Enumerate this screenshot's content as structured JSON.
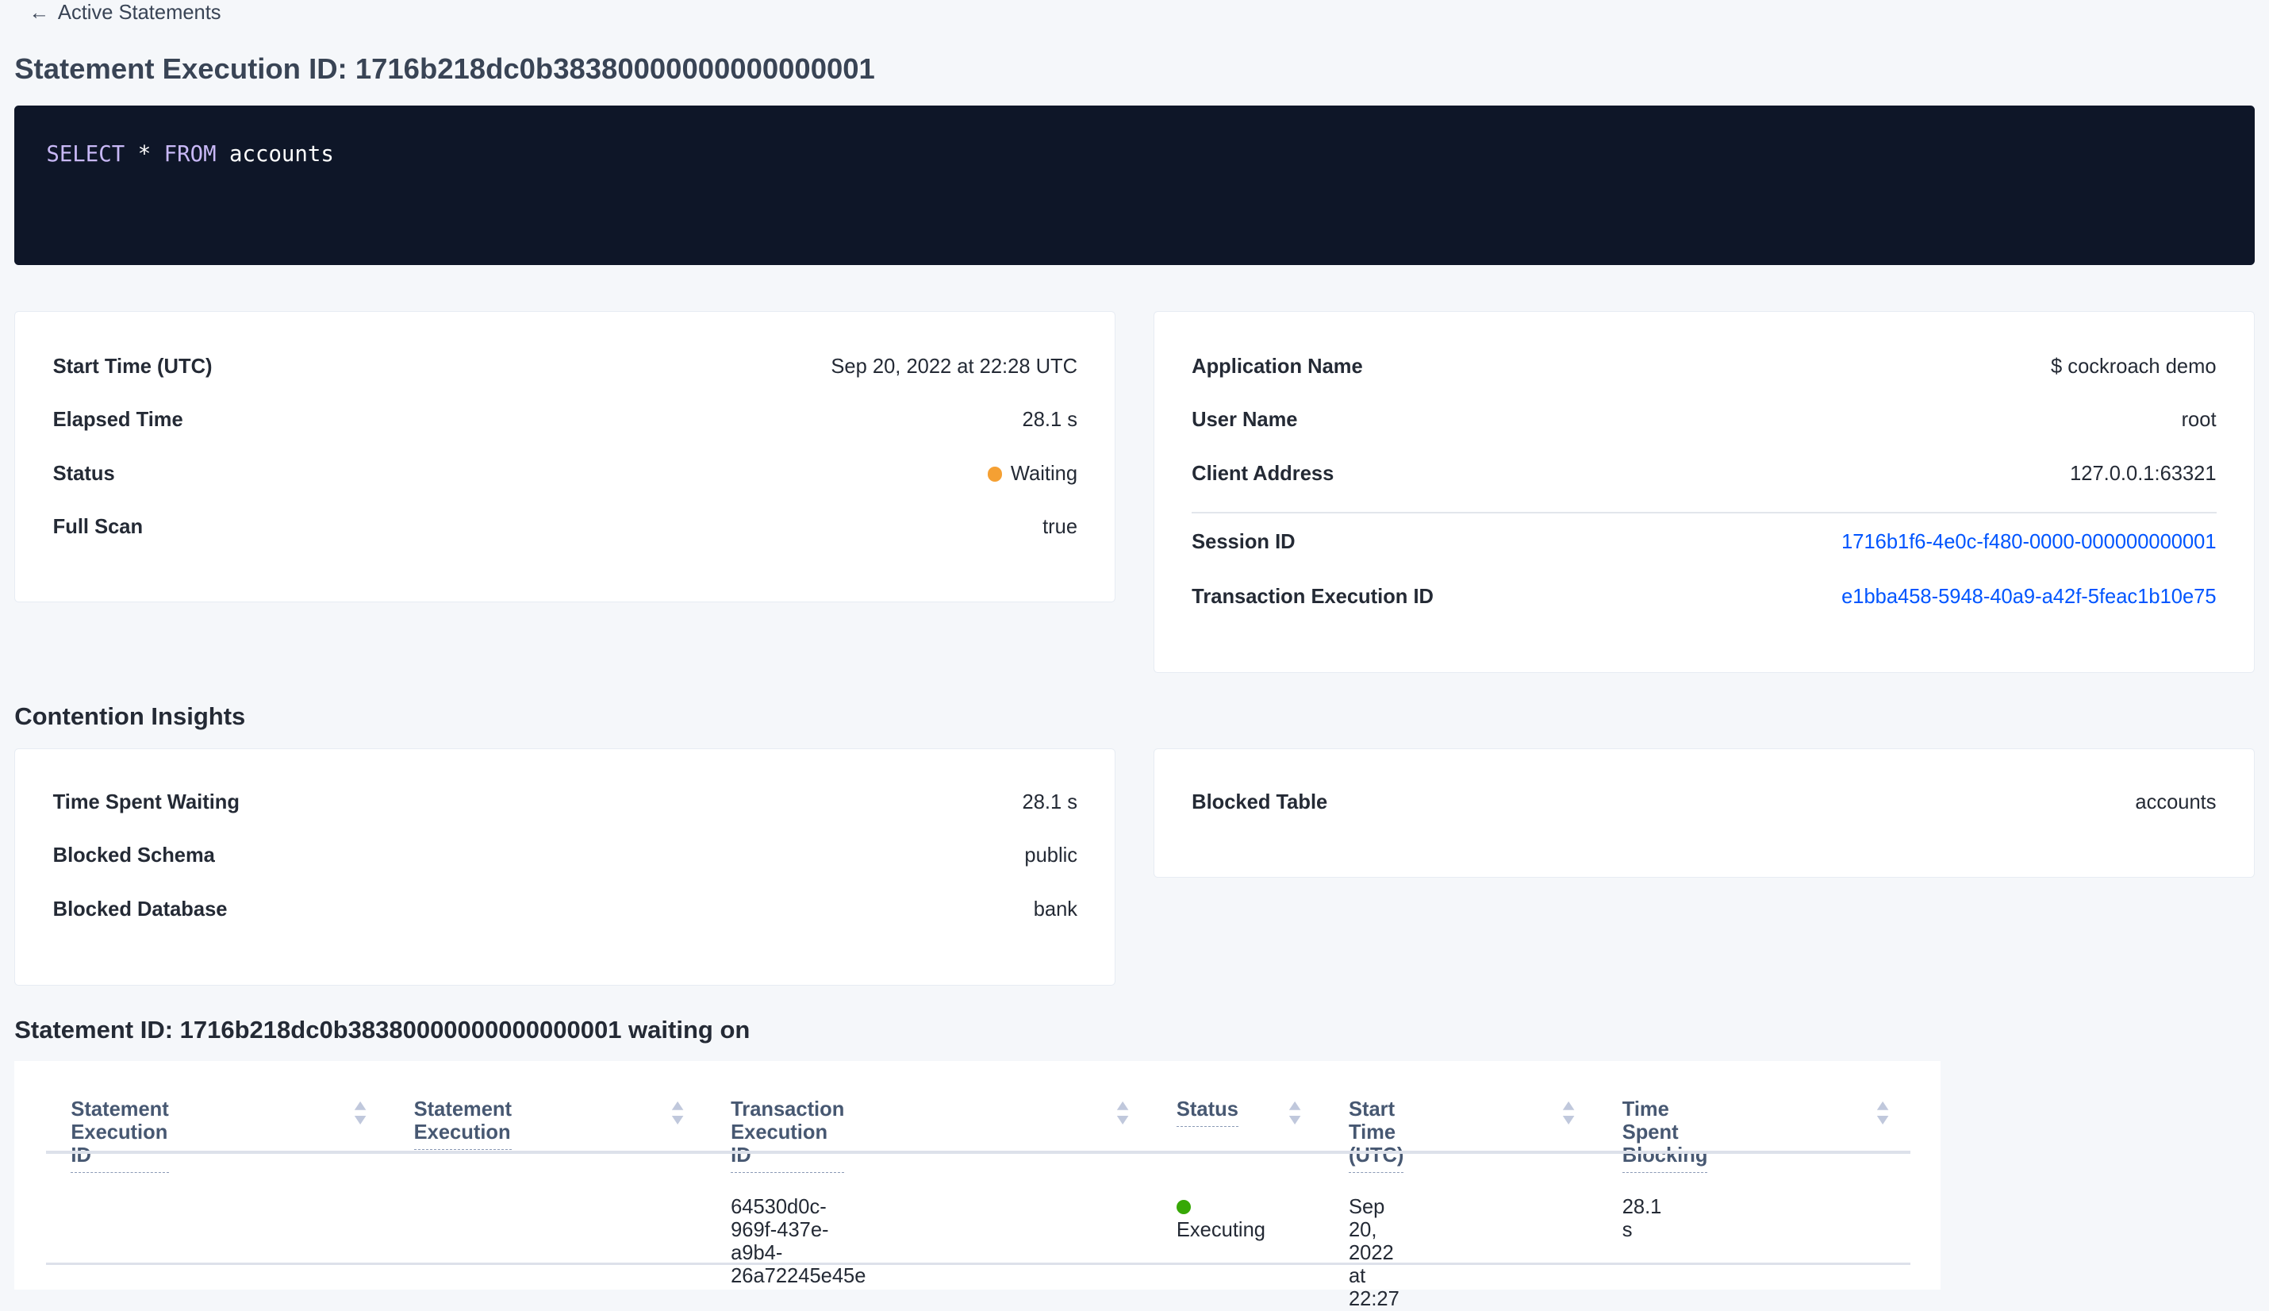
{
  "breadcrumb": {
    "icon": "arrow-left-icon",
    "label": "Active Statements"
  },
  "title": "Statement Execution ID: 1716b218dc0b38380000000000000001",
  "sql": {
    "keyword1": "SELECT",
    "star": "*",
    "keyword2": "FROM",
    "table": "accounts"
  },
  "summary_left": [
    {
      "label": "Start Time (UTC)",
      "value": "Sep 20, 2022 at 22:28 UTC"
    },
    {
      "label": "Elapsed Time",
      "value": "28.1 s"
    },
    {
      "label": "Status",
      "value": "Waiting",
      "status_color": "#f5a033"
    },
    {
      "label": "Full Scan",
      "value": "true"
    }
  ],
  "summary_right": [
    {
      "label": "Application Name",
      "value": "$ cockroach demo"
    },
    {
      "label": "User Name",
      "value": "root"
    },
    {
      "label": "Client Address",
      "value": "127.0.0.1:63321"
    },
    {
      "label": "Session ID",
      "value": "1716b1f6-4e0c-f480-0000-000000000001"
    },
    {
      "label": "Transaction Execution ID",
      "value": "e1bba458-5948-40a9-a42f-5feac1b10e75"
    }
  ],
  "contention": {
    "heading": "Contention Insights",
    "left": [
      {
        "label": "Time Spent Waiting",
        "value": "28.1 s"
      },
      {
        "label": "Blocked Schema",
        "value": "public"
      },
      {
        "label": "Blocked Database",
        "value": "bank"
      }
    ],
    "right": [
      {
        "label": "Blocked Table",
        "value": "accounts"
      }
    ]
  },
  "waiting": {
    "heading": "Statement ID: 1716b218dc0b38380000000000000001 waiting on",
    "columns": [
      "Statement Execution ID",
      "Statement Execution",
      "Transaction Execution ID",
      "Status",
      "Start Time (UTC)",
      "Time Spent Blocking"
    ],
    "rows": [
      {
        "stmt_exec_id": "",
        "stmt_exec": "",
        "txn_exec_id": "64530d0c-969f-437e-a9b4-26a72245e45e",
        "status": "Executing",
        "status_color": "#37a806",
        "start": "Sep 20, 2022 at 22:27",
        "blocking": "28.1 s"
      }
    ]
  },
  "colors": {
    "code_bg": "#0e1628",
    "link": "#0055ff",
    "accent_keyword": "#c8b8f6"
  }
}
